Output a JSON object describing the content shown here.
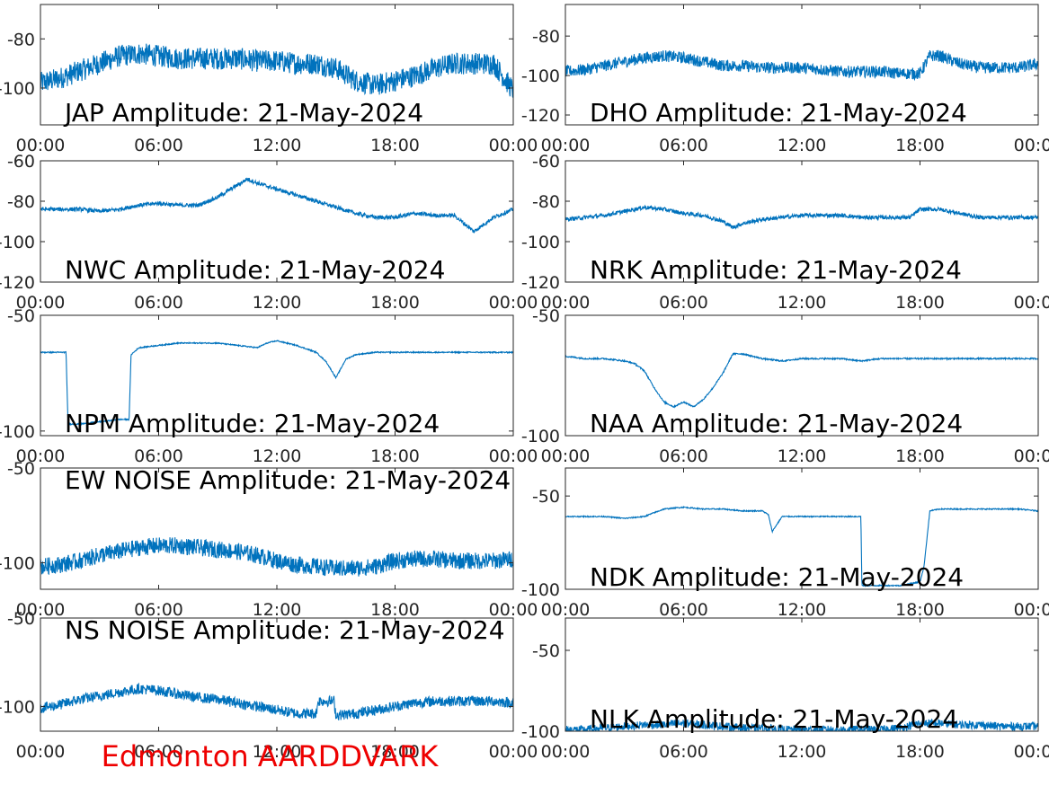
{
  "figure": {
    "footer": "Edmonton AARDDVARK",
    "footer_color": "#ee0000",
    "line_color": "#0072bd",
    "axis_color": "#262626"
  },
  "chart_data": [
    {
      "type": "line",
      "station": "JAP",
      "title": "JAP Amplitude: 21-May-2024",
      "xlabel": "",
      "ylabel": "",
      "x_ticks": [
        "00:00",
        "06:00",
        "12:00",
        "18:00",
        "00:00"
      ],
      "ylim": [
        -115,
        -66
      ],
      "y_ticks": [
        -80,
        -100
      ],
      "y_tick_labels": [
        "-80",
        "-100"
      ],
      "noise": 4.5,
      "series": [
        {
          "x": [
            0,
            1,
            2,
            3,
            4,
            5,
            6,
            7,
            8,
            9,
            10,
            11,
            12,
            13,
            14,
            15,
            16,
            17,
            18,
            19,
            20,
            21,
            22,
            23,
            24
          ],
          "y": [
            -98,
            -96,
            -93,
            -90,
            -87,
            -86,
            -87,
            -88,
            -88,
            -88,
            -88,
            -89,
            -89,
            -90,
            -90,
            -92,
            -97,
            -99,
            -97,
            -95,
            -92,
            -90,
            -90,
            -90,
            -101
          ]
        }
      ]
    },
    {
      "type": "line",
      "station": "DHO",
      "title": "DHO Amplitude: 21-May-2024",
      "xlabel": "",
      "ylabel": "",
      "x_ticks": [
        "00:00",
        "06:00",
        "12:00",
        "18:00",
        "00:00"
      ],
      "ylim": [
        -125,
        -64
      ],
      "y_ticks": [
        -80,
        -100,
        -120
      ],
      "y_tick_labels": [
        "-80",
        "-100",
        "-120"
      ],
      "noise": 3,
      "series": [
        {
          "x": [
            0,
            1,
            2,
            3,
            4,
            5,
            6,
            7,
            8,
            9,
            10,
            11,
            12,
            13,
            14,
            15,
            16,
            17,
            18,
            18.5,
            19,
            20,
            21,
            22,
            23,
            24
          ],
          "y": [
            -98,
            -97,
            -95,
            -93,
            -91,
            -90,
            -91,
            -93,
            -95,
            -95,
            -96,
            -96,
            -96,
            -97,
            -98,
            -98,
            -98,
            -99,
            -99,
            -90,
            -90,
            -94,
            -96,
            -96,
            -96,
            -94
          ]
        }
      ]
    },
    {
      "type": "line",
      "station": "NWC",
      "title": "NWC Amplitude: 21-May-2024",
      "xlabel": "",
      "ylabel": "",
      "x_ticks": [
        "00:00",
        "06:00",
        "12:00",
        "18:00",
        "00:00"
      ],
      "ylim": [
        -120,
        -60
      ],
      "y_ticks": [
        -60,
        -80,
        -100,
        -120
      ],
      "y_tick_labels": [
        "-60",
        "-80",
        "-100",
        "-120"
      ],
      "noise": 1,
      "series": [
        {
          "x": [
            0,
            1,
            2,
            3,
            4,
            5,
            6,
            7,
            8,
            9,
            10,
            10.5,
            11,
            12,
            13,
            14,
            15,
            16,
            17,
            18,
            19,
            20,
            21,
            22,
            23,
            24
          ],
          "y": [
            -84,
            -84,
            -84,
            -85,
            -84,
            -82,
            -81,
            -82,
            -82,
            -78,
            -72,
            -69,
            -71,
            -74,
            -77,
            -80,
            -83,
            -86,
            -88,
            -88,
            -86,
            -87,
            -87,
            -95,
            -88,
            -84
          ]
        }
      ]
    },
    {
      "type": "line",
      "station": "NRK",
      "title": "NRK Amplitude: 21-May-2024",
      "xlabel": "",
      "ylabel": "",
      "x_ticks": [
        "00:00",
        "06:00",
        "12:00",
        "18:00",
        "00:00"
      ],
      "ylim": [
        -120,
        -60
      ],
      "y_ticks": [
        -60,
        -80,
        -100,
        -120
      ],
      "y_tick_labels": [
        "-60",
        "-80",
        "-100",
        "-120"
      ],
      "noise": 1,
      "series": [
        {
          "x": [
            0,
            1,
            2,
            3,
            4,
            5,
            6,
            7,
            8,
            8.5,
            9,
            10,
            11,
            12,
            13,
            14,
            15,
            16,
            17,
            17.5,
            18,
            19,
            20,
            21,
            22,
            23,
            24
          ],
          "y": [
            -89,
            -88,
            -87,
            -85,
            -83,
            -84,
            -86,
            -87,
            -90,
            -93,
            -91,
            -89,
            -88,
            -87,
            -87,
            -87,
            -88,
            -88,
            -88,
            -88,
            -84,
            -84,
            -86,
            -88,
            -88,
            -88,
            -88
          ]
        }
      ]
    },
    {
      "type": "line",
      "station": "NPM",
      "title": "NPM Amplitude: 21-May-2024",
      "xlabel": "",
      "ylabel": "",
      "x_ticks": [
        "00:00",
        "06:00",
        "12:00",
        "18:00",
        "00:00"
      ],
      "ylim": [
        -102,
        -50
      ],
      "y_ticks": [
        -50,
        -100
      ],
      "y_tick_labels": [
        "-50",
        "-100"
      ],
      "noise": 0.25,
      "series": [
        {
          "x": [
            0,
            1.3,
            1.4,
            2,
            3,
            4,
            4.5,
            4.6,
            5,
            6,
            7,
            8,
            9,
            10,
            11,
            11.5,
            12,
            13,
            14,
            14.5,
            15,
            15.5,
            16,
            17,
            18,
            19,
            20,
            21,
            22,
            23,
            24
          ],
          "y": [
            -66,
            -66,
            -97,
            -97,
            -96,
            -95,
            -95,
            -67,
            -64,
            -63,
            -62,
            -62,
            -62,
            -63,
            -64,
            -62,
            -61,
            -63,
            -66,
            -70,
            -77,
            -69,
            -67,
            -66,
            -66,
            -66,
            -66,
            -66,
            -66,
            -66,
            -66
          ]
        }
      ]
    },
    {
      "type": "line",
      "station": "NAA",
      "title": "NAA Amplitude: 21-May-2024",
      "xlabel": "",
      "ylabel": "",
      "x_ticks": [
        "00:00",
        "06:00",
        "12:00",
        "18:00",
        "00:00"
      ],
      "ylim": [
        -100,
        -50
      ],
      "y_ticks": [
        -50,
        -100
      ],
      "y_tick_labels": [
        "-50",
        "-100"
      ],
      "noise": 0.3,
      "series": [
        {
          "x": [
            0,
            1,
            2,
            3,
            3.5,
            4,
            4.5,
            5,
            5.5,
            6,
            6.5,
            7,
            7.5,
            8,
            8.5,
            9,
            10,
            11,
            12,
            13,
            14,
            15,
            16,
            17,
            18,
            19,
            20,
            21,
            22,
            23,
            24
          ],
          "y": [
            -67,
            -68,
            -68,
            -69,
            -70,
            -73,
            -80,
            -86,
            -88,
            -86,
            -88,
            -85,
            -80,
            -74,
            -66,
            -66,
            -68,
            -69,
            -68,
            -68,
            -68,
            -69,
            -68,
            -68,
            -68,
            -68,
            -68,
            -68,
            -68,
            -68,
            -68
          ]
        }
      ]
    },
    {
      "type": "line",
      "station": "EW NOISE",
      "title": "EW NOISE Amplitude: 21-May-2024",
      "xlabel": "",
      "ylabel": "",
      "x_ticks": [
        "00:00",
        "06:00",
        "12:00",
        "18:00",
        "00:00"
      ],
      "ylim": [
        -114,
        -50
      ],
      "y_ticks": [
        -50,
        -100
      ],
      "y_tick_labels": [
        "-50",
        "-100"
      ],
      "noise": 4.5,
      "series": [
        {
          "x": [
            0,
            1,
            2,
            3,
            4,
            5,
            6,
            7,
            8,
            9,
            10,
            11,
            12,
            13,
            14,
            15,
            16,
            17,
            18,
            19,
            20,
            21,
            22,
            23,
            24
          ],
          "y": [
            -102,
            -101,
            -99,
            -96,
            -94,
            -92,
            -91,
            -91,
            -92,
            -93,
            -94,
            -96,
            -99,
            -101,
            -102,
            -103,
            -103,
            -102,
            -99,
            -98,
            -98,
            -99,
            -99,
            -99,
            -98
          ]
        }
      ]
    },
    {
      "type": "line",
      "station": "NDK",
      "title": "NDK Amplitude: 21-May-2024",
      "xlabel": "",
      "ylabel": "",
      "x_ticks": [
        "00:00",
        "06:00",
        "12:00",
        "18:00",
        "00:00"
      ],
      "ylim": [
        -100,
        -35
      ],
      "y_ticks": [
        -50,
        -100
      ],
      "y_tick_labels": [
        "-50",
        "-100"
      ],
      "noise": 0.3,
      "series": [
        {
          "x": [
            0,
            1,
            2,
            3,
            4,
            5,
            6,
            7,
            8,
            9,
            10,
            10.3,
            10.5,
            11,
            12,
            13,
            14,
            15,
            15.05,
            16,
            17,
            18,
            18.2,
            18.5,
            19,
            20,
            21,
            22,
            23,
            24
          ],
          "y": [
            -61,
            -61,
            -61,
            -62,
            -61,
            -57,
            -56,
            -57,
            -57,
            -58,
            -58,
            -60,
            -69,
            -61,
            -61,
            -61,
            -61,
            -61,
            -98,
            -98,
            -98,
            -96,
            -88,
            -58,
            -57,
            -57,
            -57,
            -57,
            -57,
            -58
          ]
        }
      ]
    },
    {
      "type": "line",
      "station": "NS NOISE",
      "title": "NS NOISE Amplitude: 21-May-2024",
      "xlabel": "",
      "ylabel": "",
      "x_ticks": [
        "00:00",
        "06:00",
        "12:00",
        "18:00",
        "00:00"
      ],
      "ylim": [
        -114,
        -50
      ],
      "y_ticks": [
        -50,
        -100
      ],
      "y_tick_labels": [
        "-50",
        "-100"
      ],
      "noise": 3,
      "series": [
        {
          "x": [
            0,
            1,
            2,
            3,
            4,
            5,
            6,
            7,
            8,
            9,
            10,
            11,
            12,
            13,
            14,
            14.1,
            14.9,
            15,
            16,
            17,
            18,
            19,
            20,
            21,
            22,
            23,
            24
          ],
          "y": [
            -101,
            -99,
            -96,
            -94,
            -92,
            -90,
            -91,
            -93,
            -95,
            -96,
            -98,
            -100,
            -102,
            -104,
            -104,
            -97,
            -97,
            -105,
            -104,
            -102,
            -100,
            -98,
            -97,
            -97,
            -97,
            -97,
            -98
          ]
        }
      ]
    },
    {
      "type": "line",
      "station": "NLK",
      "title": "NLK Amplitude: 21-May-2024",
      "xlabel": "",
      "ylabel": "",
      "x_ticks": [
        "00:00",
        "06:00",
        "12:00",
        "18:00",
        "00:00"
      ],
      "ylim": [
        -100,
        -30
      ],
      "y_ticks": [
        -50,
        -100
      ],
      "y_tick_labels": [
        "-50",
        "-100"
      ],
      "noise": 2.5,
      "series": [
        {
          "x": [
            0,
            1,
            2,
            3,
            4,
            5,
            6,
            7,
            8,
            9,
            10,
            11,
            12,
            13,
            14,
            15,
            16,
            17,
            18,
            19,
            20,
            21,
            22,
            23,
            24
          ],
          "y": [
            -99,
            -99,
            -98,
            -97,
            -96,
            -96,
            -95,
            -96,
            -97,
            -98,
            -98,
            -99,
            -99,
            -99,
            -99,
            -99,
            -99,
            -98,
            -95,
            -95,
            -96,
            -96,
            -97,
            -97,
            -97
          ]
        }
      ]
    }
  ]
}
